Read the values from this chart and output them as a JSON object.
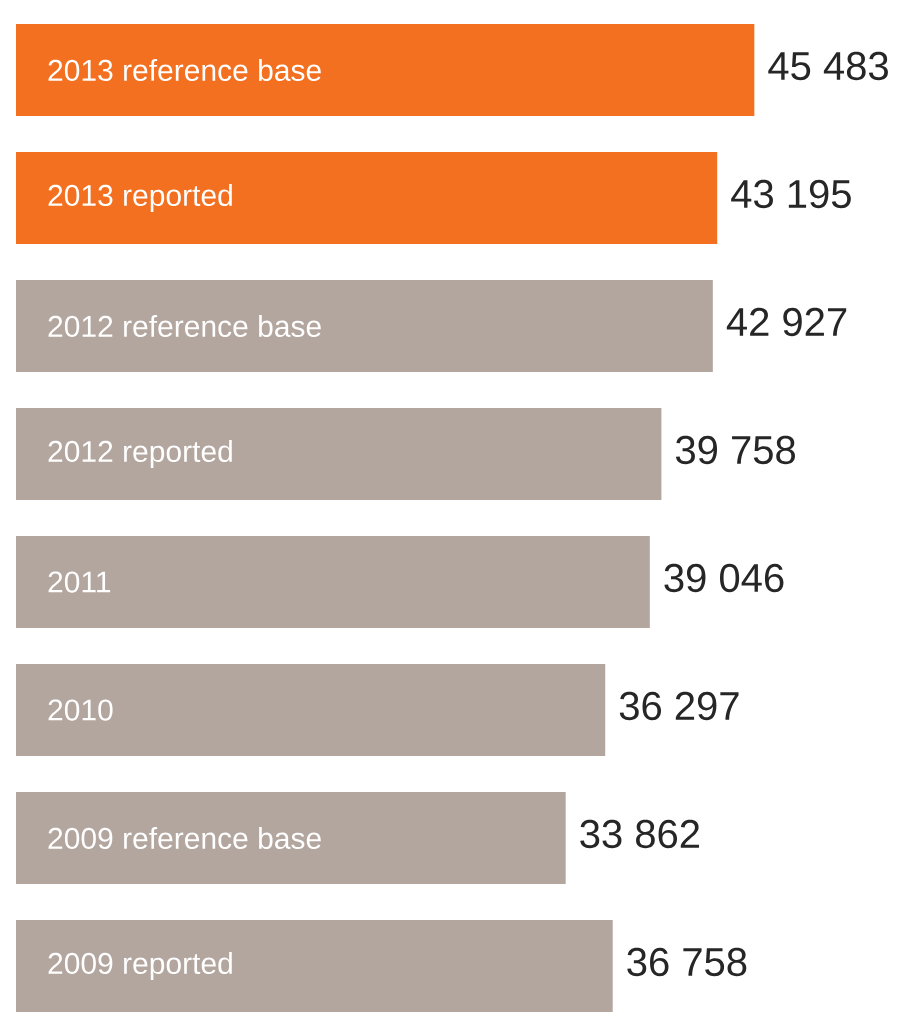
{
  "chart_data": {
    "type": "bar",
    "orientation": "horizontal",
    "categories": [
      "2013 reference base",
      "2013 reported",
      "2012 reference base",
      "2012 reported",
      "2011",
      "2010",
      "2009 reference base",
      "2009 reported"
    ],
    "values": [
      45483,
      43195,
      42927,
      39758,
      39046,
      36297,
      33862,
      36758
    ],
    "value_labels": [
      "45 483",
      "43 195",
      "42 927",
      "39 758",
      "39 046",
      "36 297",
      "33 862",
      "36 758"
    ],
    "colors": [
      "#f37021",
      "#f37021",
      "#b3a69f",
      "#b3a69f",
      "#b3a69f",
      "#b3a69f",
      "#b3a69f",
      "#b3a69f"
    ]
  }
}
